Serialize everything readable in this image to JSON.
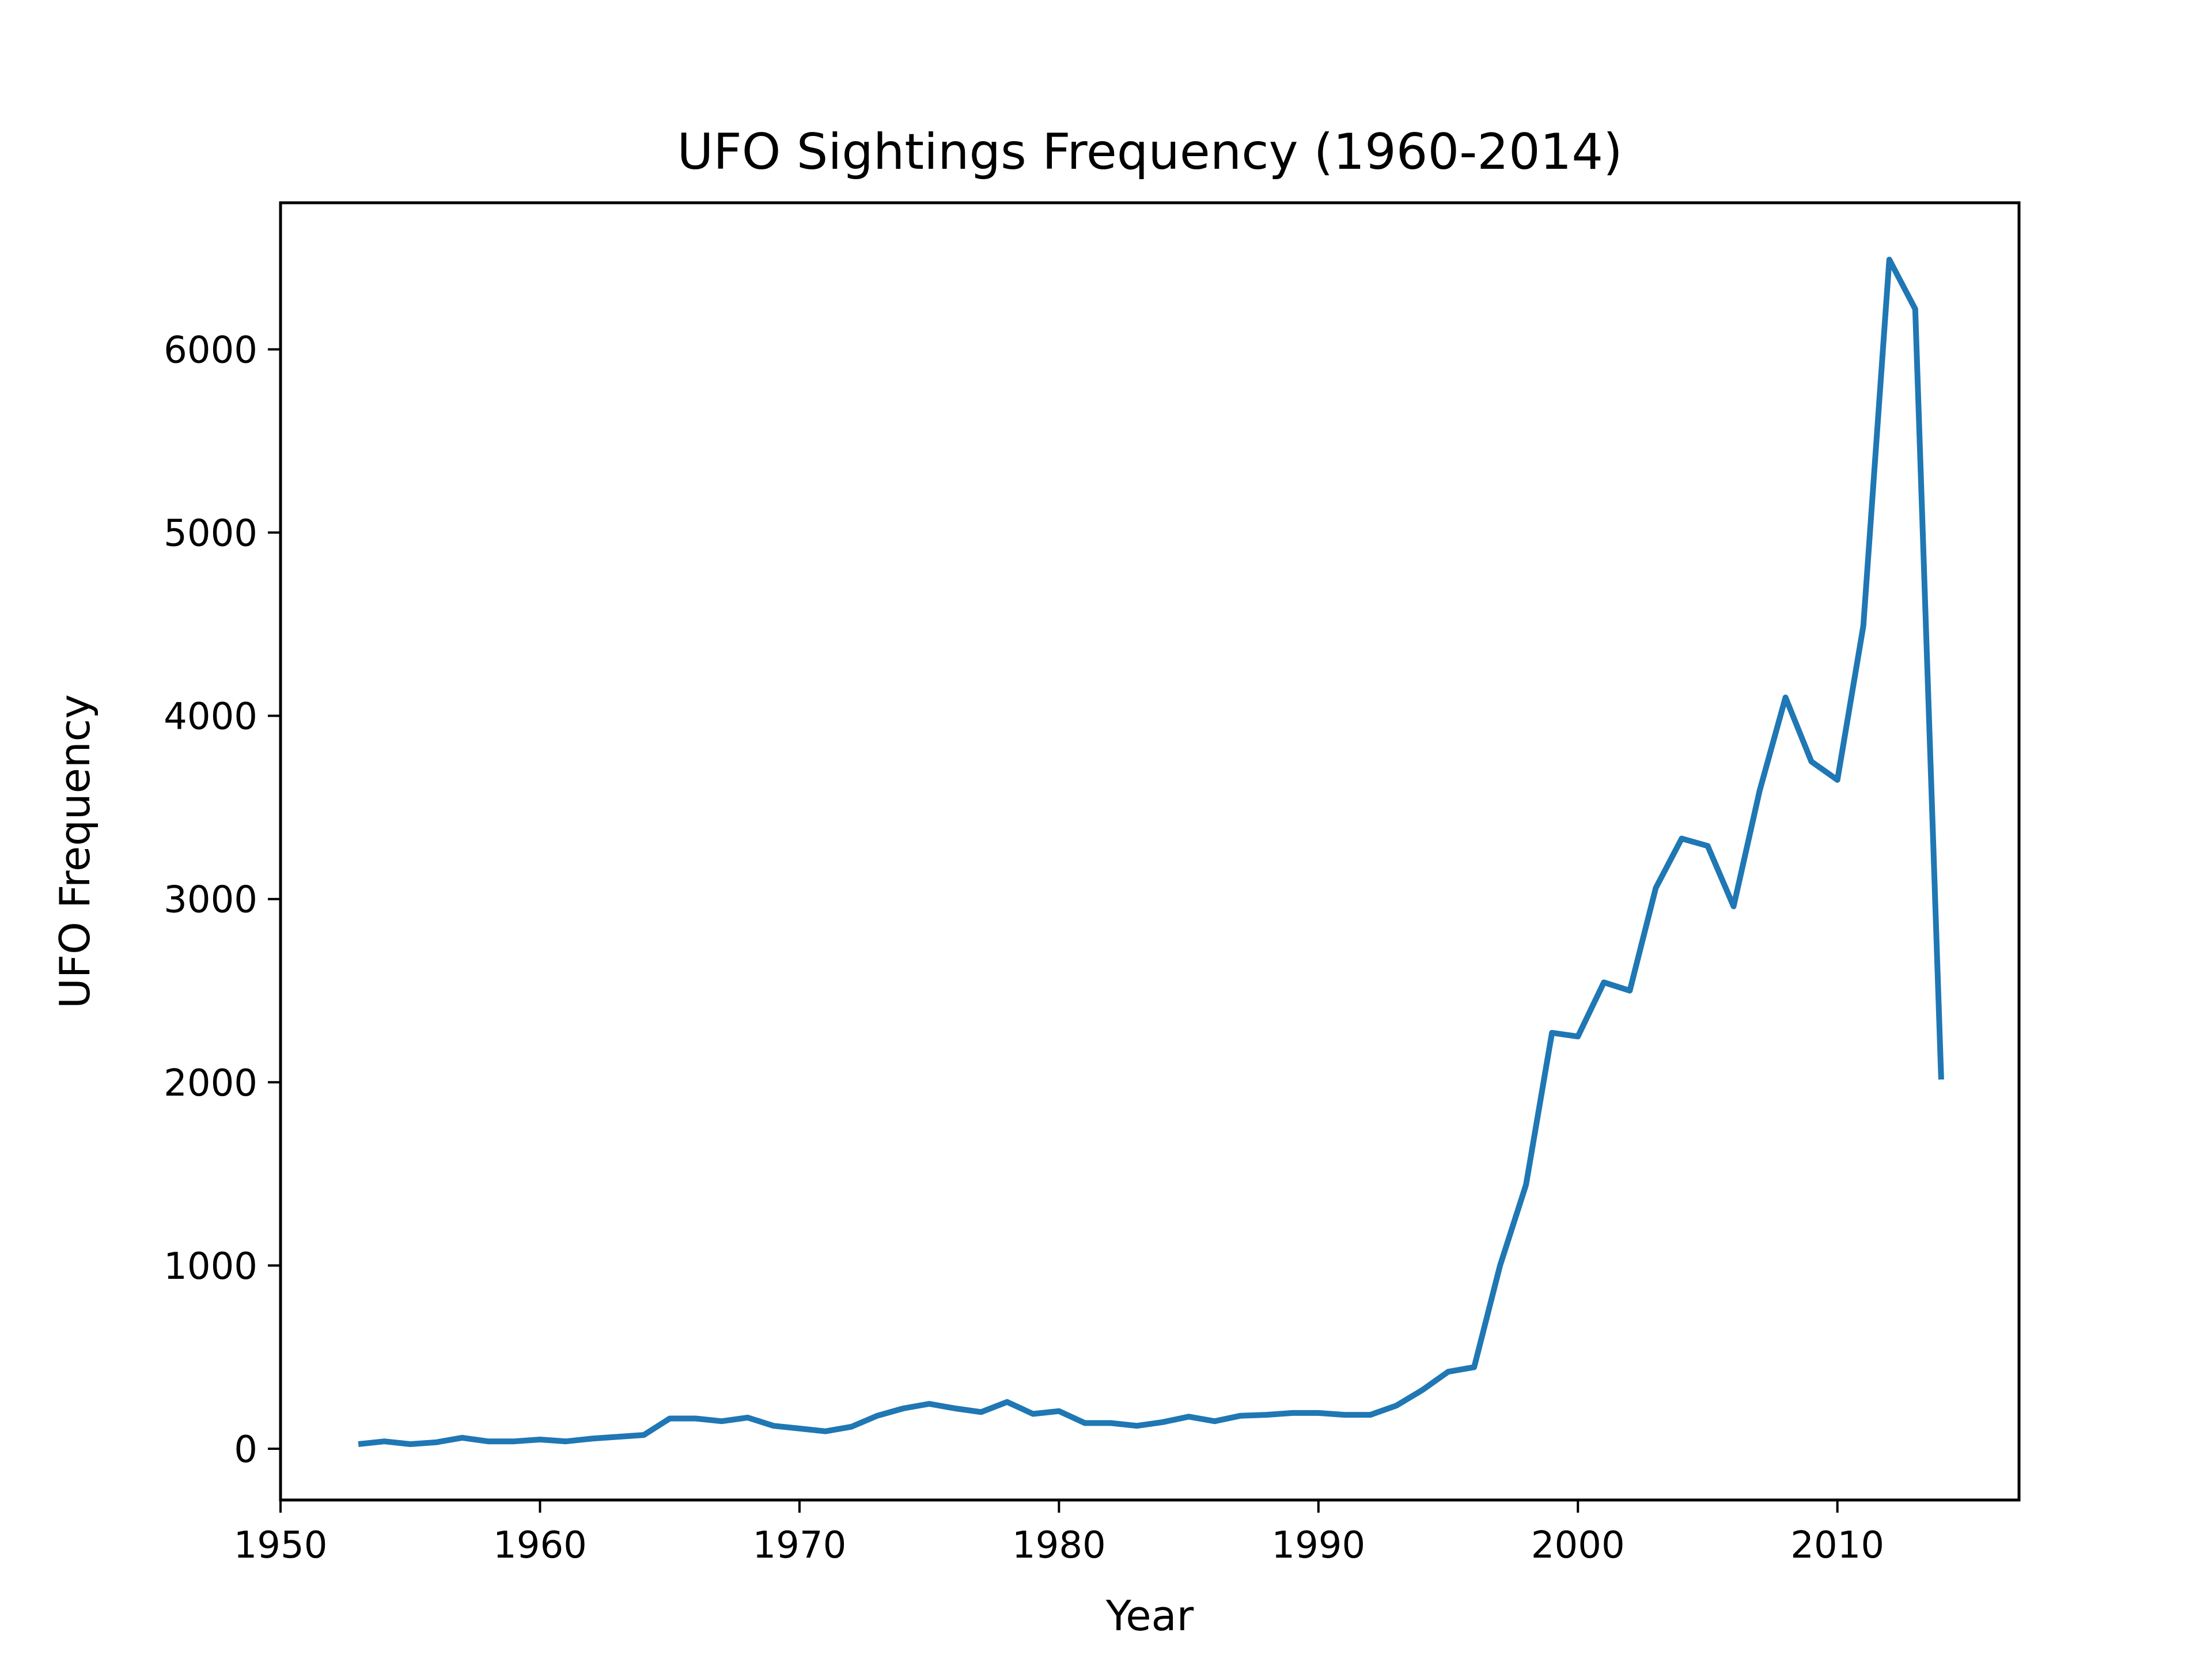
{
  "chart_data": {
    "type": "line",
    "title": "UFO Sightings Frequency (1960-2014)",
    "xlabel": "Year",
    "ylabel": "UFO Frequency",
    "xlim": [
      1950,
      2017
    ],
    "ylim": [
      -280,
      6800
    ],
    "x_ticks": [
      1950,
      1960,
      1970,
      1980,
      1990,
      2000,
      2010
    ],
    "y_ticks": [
      0,
      1000,
      2000,
      3000,
      4000,
      5000,
      6000
    ],
    "grid": false,
    "legend": "none",
    "series": [
      {
        "color": "#1f77b4",
        "x": [
          1953,
          1954,
          1955,
          1956,
          1957,
          1958,
          1959,
          1960,
          1961,
          1962,
          1963,
          1964,
          1965,
          1966,
          1967,
          1968,
          1969,
          1970,
          1971,
          1972,
          1973,
          1974,
          1975,
          1976,
          1977,
          1978,
          1979,
          1980,
          1981,
          1982,
          1983,
          1984,
          1985,
          1986,
          1987,
          1988,
          1989,
          1990,
          1991,
          1992,
          1993,
          1994,
          1995,
          1996,
          1997,
          1998,
          1999,
          2000,
          2001,
          2002,
          2003,
          2004,
          2005,
          2006,
          2007,
          2008,
          2009,
          2010,
          2011,
          2012,
          2013,
          2014
        ],
        "values": [
          25,
          40,
          25,
          35,
          60,
          40,
          40,
          50,
          40,
          55,
          65,
          75,
          165,
          165,
          150,
          170,
          125,
          110,
          95,
          120,
          180,
          220,
          245,
          220,
          200,
          255,
          190,
          205,
          140,
          140,
          125,
          145,
          175,
          150,
          180,
          185,
          195,
          195,
          185,
          185,
          235,
          320,
          420,
          445,
          1000,
          1440,
          2270,
          2250,
          2545,
          2500,
          3060,
          3330,
          3290,
          2960,
          3590,
          4100,
          3750,
          3650,
          4490,
          6490,
          6220,
          2015
        ]
      }
    ]
  }
}
